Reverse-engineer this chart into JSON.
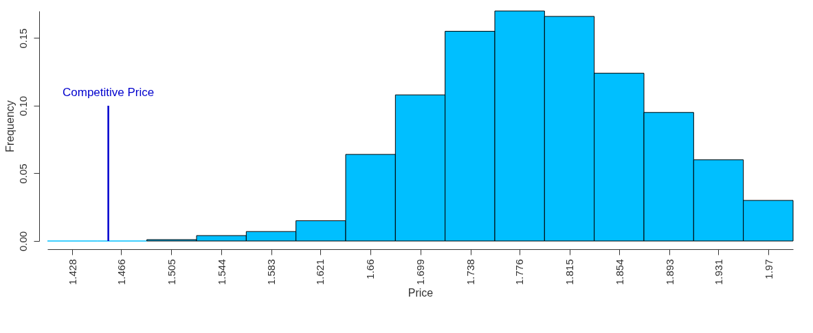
{
  "chart_data": {
    "type": "histogram",
    "xlabel": "Price",
    "ylabel": "Frequency",
    "bins": [
      1.4086,
      1.4473,
      1.486,
      1.5247,
      1.5634,
      1.6021,
      1.6408,
      1.6795,
      1.7182,
      1.7569,
      1.7956,
      1.8343,
      1.873,
      1.9117,
      1.9504,
      1.9891
    ],
    "values": [
      0,
      0,
      0.001,
      0.004,
      0.007,
      0.015,
      0.064,
      0.108,
      0.155,
      0.17,
      0.166,
      0.124,
      0.095,
      0.06,
      0.03
    ],
    "color": "#00bfff",
    "xlim": [
      1.4086,
      1.9891
    ],
    "xticks": [
      1.428,
      1.466,
      1.505,
      1.544,
      1.583,
      1.621,
      1.66,
      1.699,
      1.738,
      1.776,
      1.815,
      1.854,
      1.893,
      1.931,
      1.97
    ],
    "ylim": [
      0,
      0.17
    ],
    "yticks": [
      {
        "value": 0,
        "label": "0.00"
      },
      {
        "value": 0.05,
        "label": "0.05"
      },
      {
        "value": 0.1,
        "label": "0.10"
      },
      0.15
    ],
    "ref_lines": [
      {
        "axis": "x",
        "value": 1.456,
        "color": "#0000cd"
      }
    ],
    "annotations": [
      {
        "text": "Competitive Price",
        "x": 1.456,
        "y": 0.1
      }
    ],
    "grid": false
  }
}
